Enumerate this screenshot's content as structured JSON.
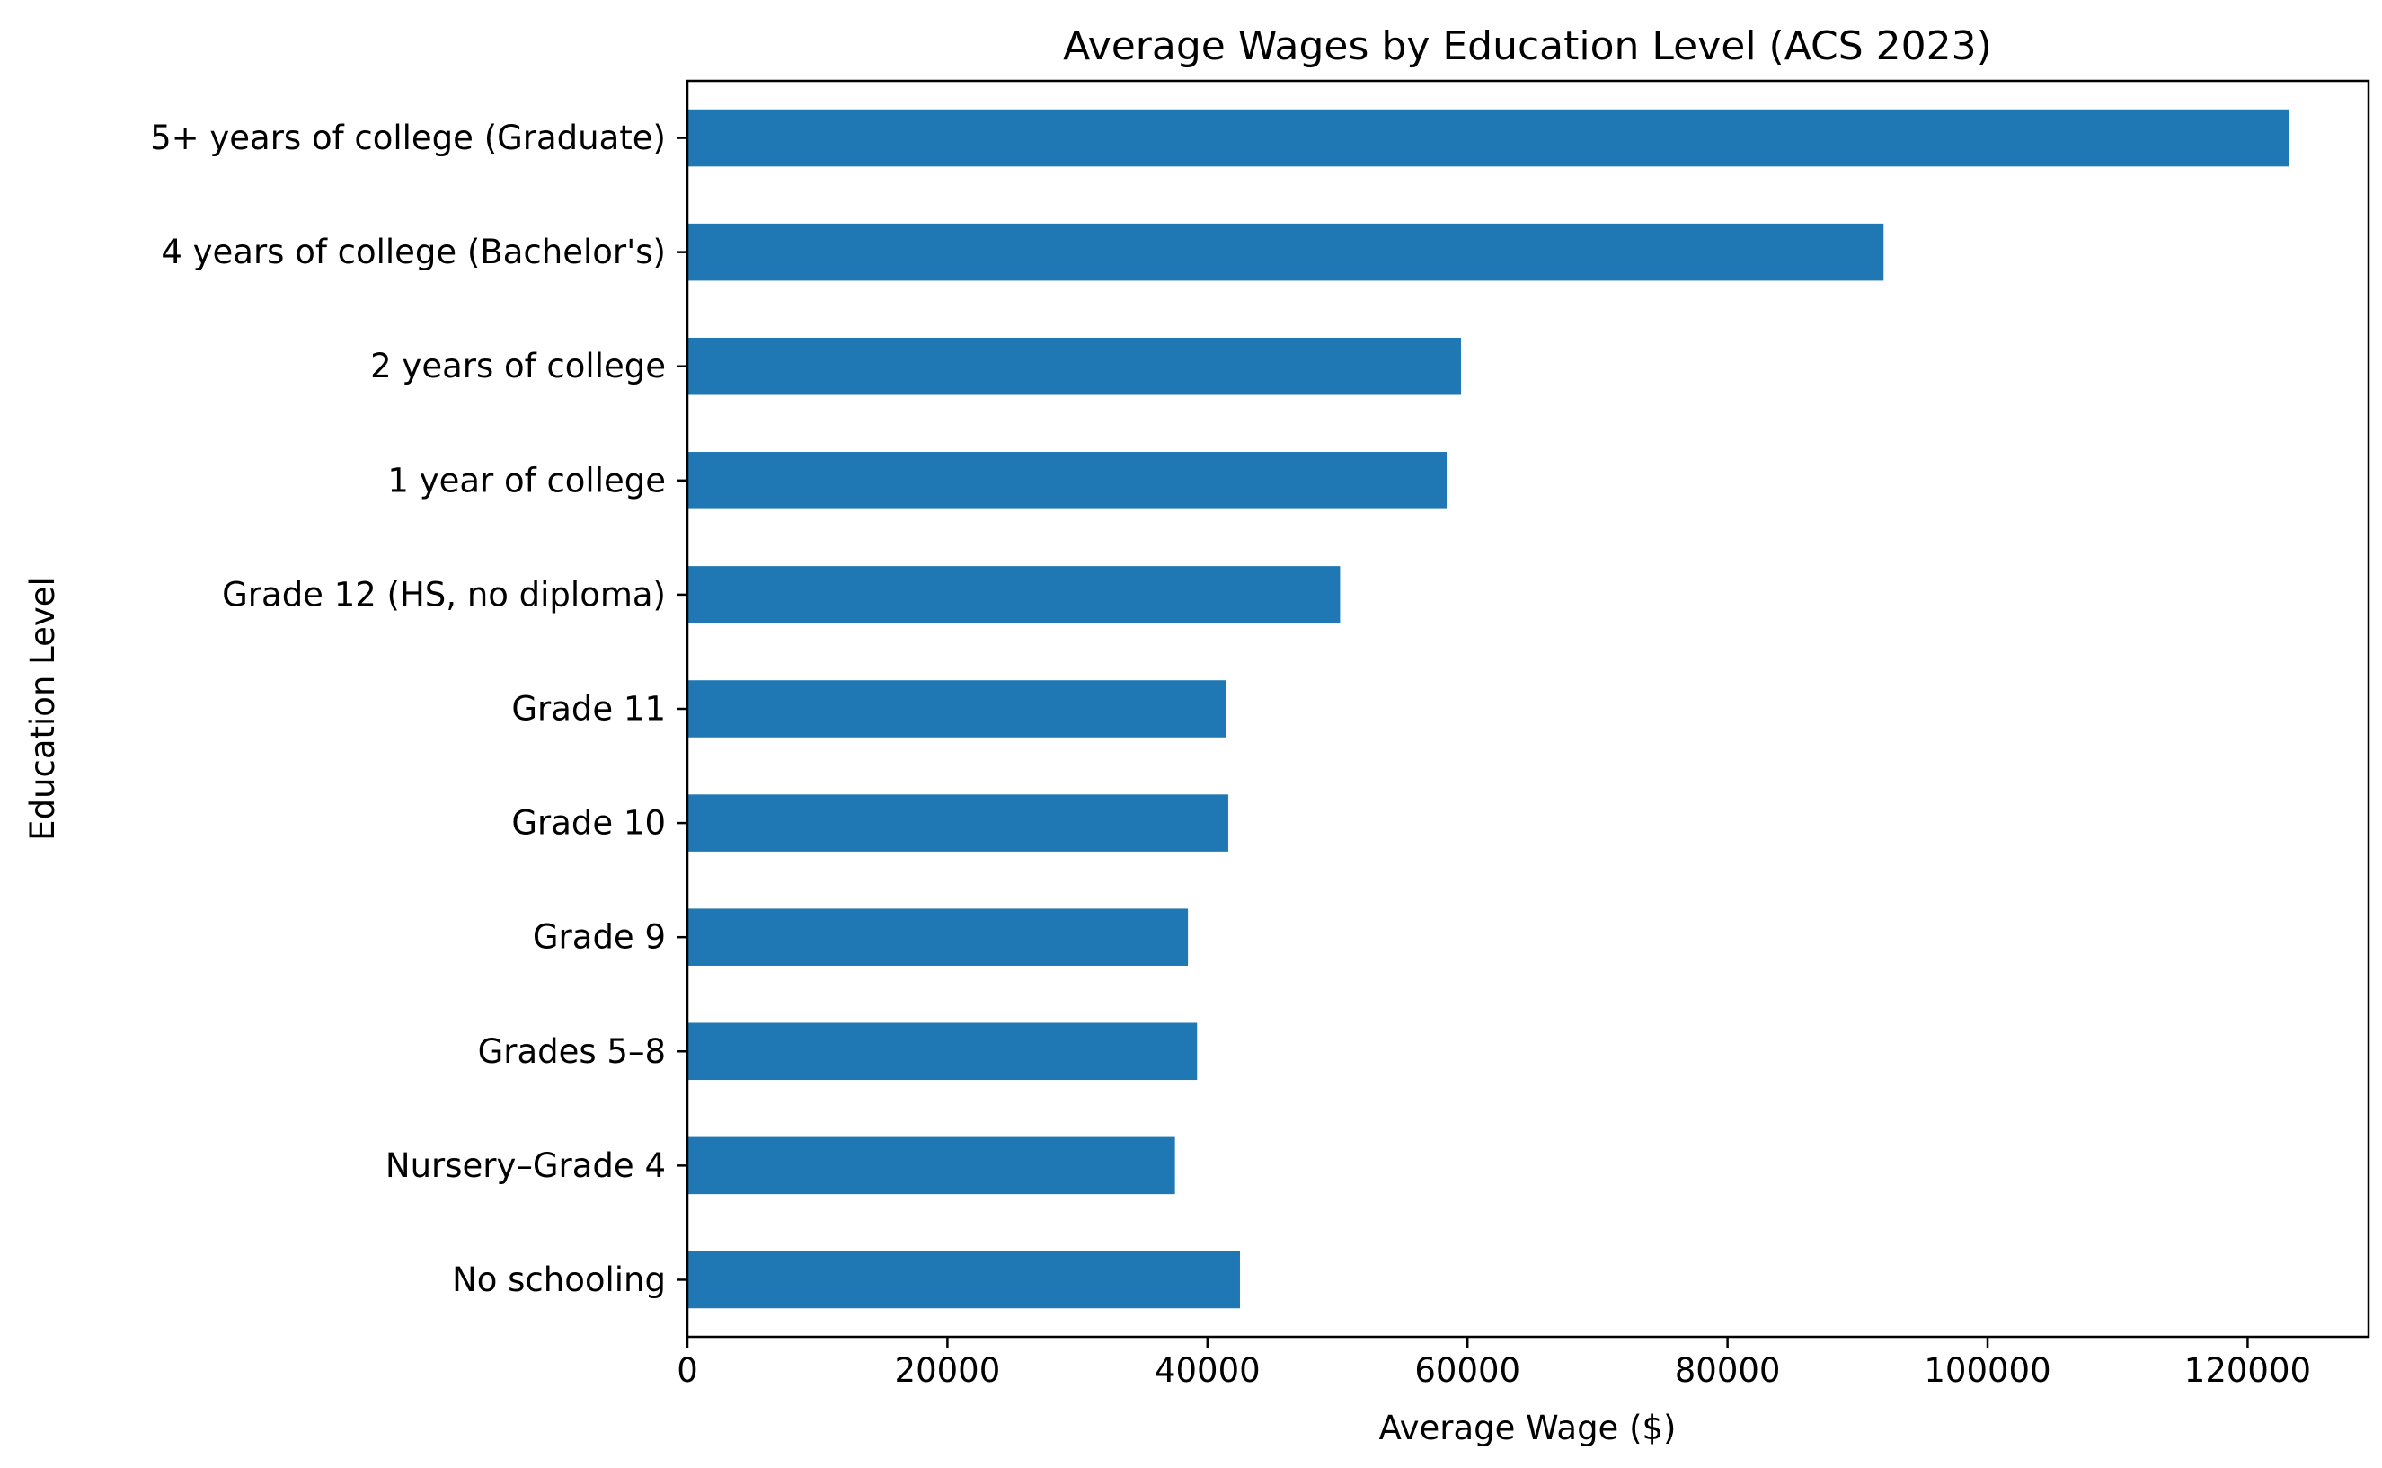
{
  "chart_data": {
    "type": "bar",
    "orientation": "horizontal",
    "title": "Average Wages by Education Level (ACS 2023)",
    "xlabel": "Average Wage ($)",
    "ylabel": "Education Level",
    "categories": [
      "No schooling",
      "Nursery–Grade 4",
      "Grades 5–8",
      "Grade 9",
      "Grade 10",
      "Grade 11",
      "Grade 12 (HS, no diploma)",
      "1 year of college",
      "2 years of college",
      "4 years of college (Bachelor's)",
      "5+ years of college (Graduate)"
    ],
    "values": [
      42500,
      37500,
      39200,
      38500,
      41600,
      41400,
      50200,
      58400,
      59500,
      92000,
      123200
    ],
    "xlim": [
      0,
      129300
    ],
    "xticks": [
      0,
      20000,
      40000,
      60000,
      80000,
      100000,
      120000
    ],
    "xtick_labels": [
      "0",
      "20000",
      "40000",
      "60000",
      "80000",
      "100000",
      "120000"
    ],
    "bar_color": "#1f77b4",
    "grid": false,
    "legend": "none"
  }
}
